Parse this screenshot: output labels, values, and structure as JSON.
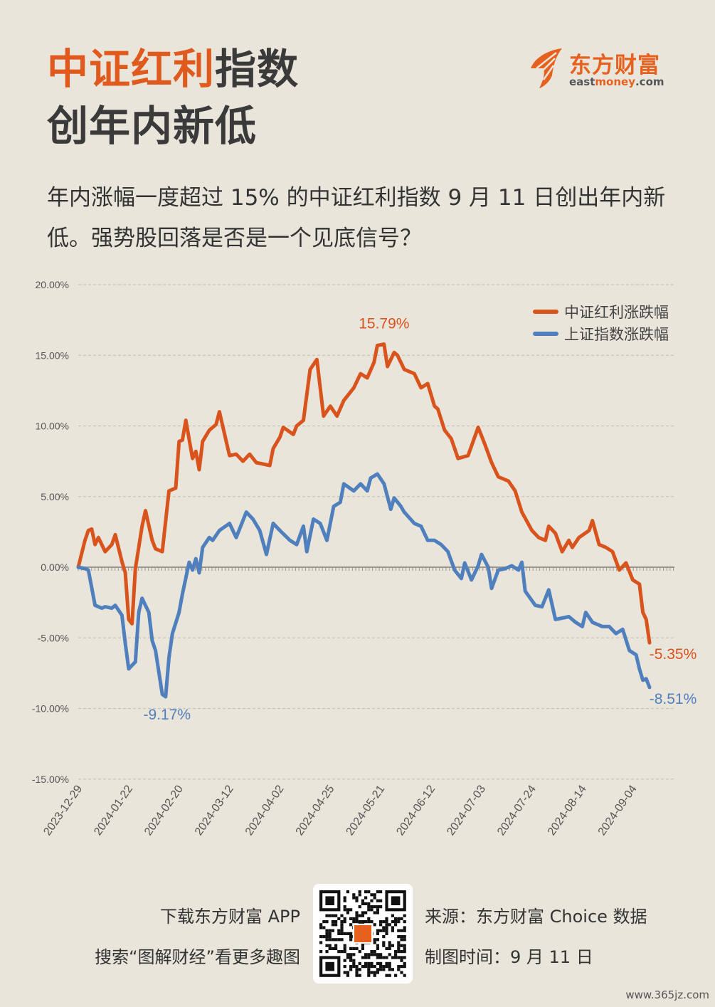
{
  "header": {
    "title_highlight": "中证红利",
    "title_rest": "指数",
    "title_line2": "创年内新低",
    "subtitle": "年内涨幅一度超过 15% 的中证红利指数 9 月 11 日创出年内新低。强势股回落是否是一个见底信号？"
  },
  "logo": {
    "cn": "东方财富",
    "en_a": "east",
    "en_b": "money",
    "en_c": ".com"
  },
  "colors": {
    "orange": "#d9531c",
    "blue": "#4f7fbd",
    "bg": "#e9e5db"
  },
  "chart_data": {
    "type": "line",
    "x_unit": "trading day index from 2023-12-29",
    "ylim": [
      -15,
      20
    ],
    "yticks": [
      20,
      15,
      10,
      5,
      0,
      -5,
      -10,
      -15
    ],
    "ytick_labels": [
      "20.00%",
      "15.00%",
      "10.00%",
      "5.00%",
      "0.00%",
      "-5.00%",
      "-10.00%",
      "-15.00%"
    ],
    "xlim": [
      0,
      170
    ],
    "xticks": [
      0,
      15,
      30,
      45,
      60,
      75,
      90,
      105,
      120,
      135,
      150,
      165
    ],
    "xtick_labels": [
      "2023-12-29",
      "2024-01-22",
      "2024-02-20",
      "2024-03-12",
      "2024-04-02",
      "2024-04-25",
      "2024-05-21",
      "2024-06-12",
      "2024-07-03",
      "2024-07-24",
      "2024-08-14",
      "2024-09-04"
    ],
    "legend_position": "top-right",
    "series": [
      {
        "name": "中证红利涨跌幅",
        "color": "#d9531c",
        "points": [
          [
            0,
            0
          ],
          [
            2,
            1.9
          ],
          [
            3,
            2.6
          ],
          [
            4,
            2.7
          ],
          [
            5,
            1.6
          ],
          [
            6,
            2.1
          ],
          [
            8,
            1.1
          ],
          [
            10,
            1.6
          ],
          [
            11,
            2.3
          ],
          [
            13,
            0.4
          ],
          [
            14,
            -0.4
          ],
          [
            15,
            -3.7
          ],
          [
            16,
            -4.0
          ],
          [
            17,
            -0.1
          ],
          [
            19,
            2.9
          ],
          [
            20,
            4.0
          ],
          [
            22,
            1.9
          ],
          [
            23,
            1.3
          ],
          [
            25,
            1.1
          ],
          [
            27,
            5.4
          ],
          [
            29,
            5.6
          ],
          [
            30,
            8.9
          ],
          [
            31,
            9.0
          ],
          [
            32,
            10.4
          ],
          [
            34,
            7.7
          ],
          [
            35,
            8.2
          ],
          [
            36,
            6.9
          ],
          [
            37,
            8.9
          ],
          [
            39,
            9.7
          ],
          [
            41,
            10.1
          ],
          [
            42,
            11.0
          ],
          [
            45,
            7.9
          ],
          [
            47,
            8.0
          ],
          [
            49,
            7.5
          ],
          [
            51,
            8.0
          ],
          [
            53,
            7.4
          ],
          [
            57,
            7.2
          ],
          [
            58,
            8.4
          ],
          [
            60,
            9.2
          ],
          [
            61,
            9.9
          ],
          [
            64,
            9.4
          ],
          [
            65,
            10.0
          ],
          [
            67,
            10.4
          ],
          [
            69,
            14.0
          ],
          [
            71,
            14.7
          ],
          [
            73,
            10.7
          ],
          [
            75,
            11.4
          ],
          [
            77,
            10.7
          ],
          [
            79,
            11.8
          ],
          [
            82,
            12.7
          ],
          [
            84,
            13.7
          ],
          [
            86,
            13.4
          ],
          [
            88,
            14.5
          ],
          [
            89,
            15.7
          ],
          [
            91,
            15.79
          ],
          [
            92,
            14.2
          ],
          [
            94,
            15.2
          ],
          [
            95,
            15.0
          ],
          [
            97,
            14.0
          ],
          [
            100,
            13.7
          ],
          [
            102,
            12.7
          ],
          [
            104,
            13.0
          ],
          [
            106,
            11.4
          ],
          [
            107,
            11.2
          ],
          [
            109,
            9.7
          ],
          [
            111,
            9.1
          ],
          [
            113,
            7.7
          ],
          [
            116,
            7.9
          ],
          [
            119,
            9.9
          ],
          [
            121,
            8.7
          ],
          [
            123,
            7.4
          ],
          [
            125,
            6.4
          ],
          [
            128,
            6.1
          ],
          [
            130,
            5.4
          ],
          [
            132,
            3.9
          ],
          [
            135,
            2.6
          ],
          [
            137,
            2.1
          ],
          [
            139,
            1.9
          ],
          [
            140,
            2.9
          ],
          [
            142,
            2.4
          ],
          [
            144,
            1.1
          ],
          [
            146,
            1.9
          ],
          [
            147,
            1.4
          ],
          [
            149,
            2.1
          ],
          [
            152,
            2.6
          ],
          [
            153,
            3.3
          ],
          [
            155,
            1.6
          ],
          [
            157,
            1.4
          ],
          [
            159,
            1.1
          ],
          [
            161,
            -0.2
          ],
          [
            163,
            0.3
          ],
          [
            165,
            -0.9
          ],
          [
            167,
            -1.2
          ],
          [
            168,
            -3.2
          ],
          [
            169,
            -3.7
          ],
          [
            170,
            -5.35
          ]
        ]
      },
      {
        "name": "上证指数涨跌幅",
        "color": "#4f7fbd",
        "points": [
          [
            0,
            0
          ],
          [
            2,
            -0.1
          ],
          [
            3,
            -0.2
          ],
          [
            5,
            -2.7
          ],
          [
            7,
            -2.9
          ],
          [
            8,
            -2.8
          ],
          [
            10,
            -2.9
          ],
          [
            11,
            -2.7
          ],
          [
            13,
            -3.4
          ],
          [
            14,
            -5.4
          ],
          [
            15,
            -7.2
          ],
          [
            17,
            -6.7
          ],
          [
            18,
            -3.2
          ],
          [
            19,
            -2.2
          ],
          [
            21,
            -3.2
          ],
          [
            22,
            -5.2
          ],
          [
            23,
            -5.9
          ],
          [
            25,
            -9.0
          ],
          [
            26,
            -9.17
          ],
          [
            27,
            -6.4
          ],
          [
            28,
            -4.7
          ],
          [
            30,
            -3.2
          ],
          [
            31,
            -1.9
          ],
          [
            33,
            0.35
          ],
          [
            34,
            -0.2
          ],
          [
            35,
            0.6
          ],
          [
            36,
            -0.4
          ],
          [
            37,
            1.4
          ],
          [
            39,
            2.1
          ],
          [
            40,
            1.9
          ],
          [
            42,
            2.6
          ],
          [
            45,
            3.1
          ],
          [
            47,
            2.1
          ],
          [
            50,
            3.9
          ],
          [
            52,
            3.4
          ],
          [
            54,
            2.6
          ],
          [
            56,
            0.9
          ],
          [
            58,
            3.1
          ],
          [
            60,
            2.6
          ],
          [
            63,
            1.9
          ],
          [
            65,
            1.6
          ],
          [
            67,
            2.9
          ],
          [
            68,
            1.1
          ],
          [
            70,
            3.4
          ],
          [
            72,
            3.1
          ],
          [
            74,
            1.9
          ],
          [
            76,
            4.3
          ],
          [
            78,
            4.6
          ],
          [
            79,
            5.9
          ],
          [
            82,
            5.4
          ],
          [
            84,
            5.9
          ],
          [
            86,
            5.4
          ],
          [
            87,
            6.3
          ],
          [
            89,
            6.6
          ],
          [
            91,
            5.9
          ],
          [
            93,
            4.1
          ],
          [
            94,
            4.9
          ],
          [
            96,
            4.3
          ],
          [
            97,
            3.9
          ],
          [
            100,
            3.1
          ],
          [
            102,
            2.9
          ],
          [
            104,
            1.9
          ],
          [
            106,
            1.9
          ],
          [
            108,
            1.6
          ],
          [
            110,
            1.1
          ],
          [
            112,
            -0.2
          ],
          [
            114,
            -0.8
          ],
          [
            115,
            0.3
          ],
          [
            117,
            -0.9
          ],
          [
            119,
            0.1
          ],
          [
            120,
            0.9
          ],
          [
            122,
            0.0
          ],
          [
            123,
            -1.5
          ],
          [
            125,
            -0.2
          ],
          [
            127,
            -0.1
          ],
          [
            129,
            0.1
          ],
          [
            131,
            -0.2
          ],
          [
            132,
            0.35
          ],
          [
            133,
            -1.7
          ],
          [
            136,
            -2.7
          ],
          [
            138,
            -2.8
          ],
          [
            140,
            -1.6
          ],
          [
            142,
            -3.7
          ],
          [
            144,
            -3.6
          ],
          [
            146,
            -3.5
          ],
          [
            148,
            -3.9
          ],
          [
            150,
            -4.2
          ],
          [
            151,
            -3.2
          ],
          [
            153,
            -3.9
          ],
          [
            156,
            -4.2
          ],
          [
            158,
            -4.2
          ],
          [
            160,
            -4.7
          ],
          [
            162,
            -4.4
          ],
          [
            164,
            -5.9
          ],
          [
            166,
            -6.2
          ],
          [
            167,
            -7.2
          ],
          [
            168,
            -8.0
          ],
          [
            169,
            -7.9
          ],
          [
            170,
            -8.51
          ]
        ]
      }
    ],
    "annotations": [
      {
        "text": "15.79%",
        "series": 0,
        "x": 91,
        "y": 15.79,
        "pos": "above"
      },
      {
        "text": "-9.17%",
        "series": 1,
        "x": 26,
        "y": -9.17,
        "pos": "below"
      },
      {
        "text": "-5.35%",
        "series": 0,
        "x": 170,
        "y": -5.35,
        "pos": "below-right"
      },
      {
        "text": "-8.51%",
        "series": 1,
        "x": 170,
        "y": -8.51,
        "pos": "below-right"
      }
    ]
  },
  "footer": {
    "download": "下载东方财富 APP",
    "search": "搜索“图解财经”看更多趣图",
    "source": "来源：东方财富 Choice 数据",
    "date": "制图时间：9 月 11 日"
  },
  "watermark": "www.365jz.com"
}
